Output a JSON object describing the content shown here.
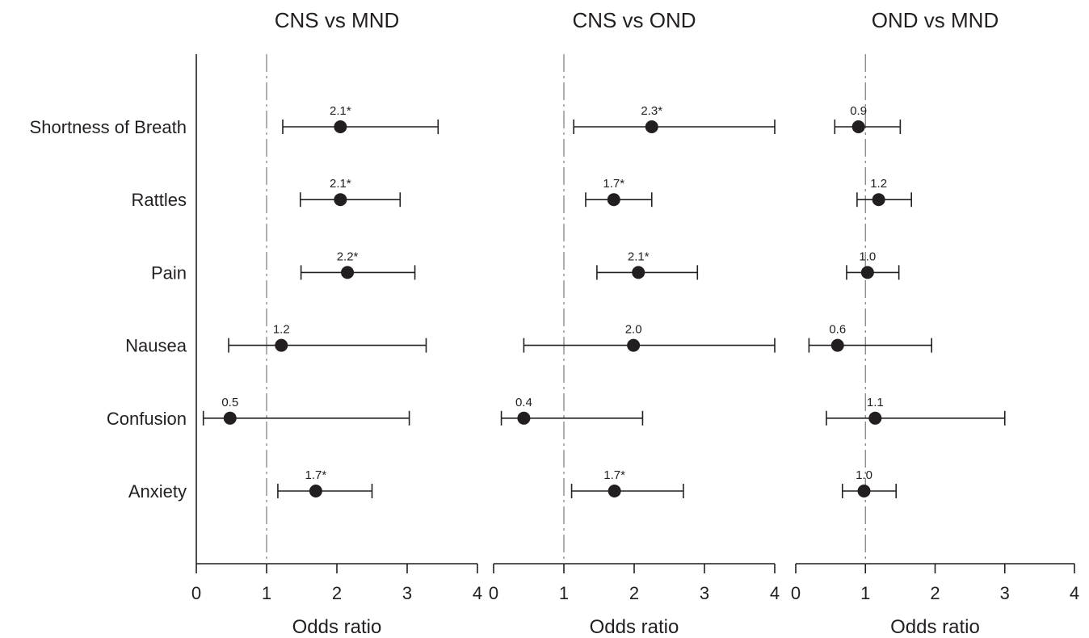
{
  "chart_data": {
    "type": "forest",
    "categories": [
      "Shortness of Breath",
      "Rattles",
      "Pain",
      "Nausea",
      "Confusion",
      "Anxiety"
    ],
    "reference_line": 1,
    "xlabel": "Odds ratio",
    "xlim": [
      0,
      4
    ],
    "xticks": [
      "0",
      "1",
      "2",
      "3",
      "4"
    ],
    "marker_color": "#231f20",
    "panels": [
      {
        "title": "CNS vs MND",
        "xlim": [
          0,
          4
        ],
        "xticks": [
          "0",
          "1",
          "2",
          "3",
          "4"
        ],
        "rows": [
          {
            "or": 2.05,
            "lo": 1.23,
            "hi": 3.44,
            "label": "2.1*"
          },
          {
            "or": 2.05,
            "lo": 1.48,
            "hi": 2.9,
            "label": "2.1*"
          },
          {
            "or": 2.15,
            "lo": 1.49,
            "hi": 3.11,
            "label": "2.2*"
          },
          {
            "or": 1.21,
            "lo": 0.46,
            "hi": 3.27,
            "label": "1.2"
          },
          {
            "or": 0.48,
            "lo": 0.1,
            "hi": 3.03,
            "label": "0.5"
          },
          {
            "or": 1.7,
            "lo": 1.16,
            "hi": 2.5,
            "label": "1.7*"
          }
        ]
      },
      {
        "title": "CNS vs OND",
        "xlim": [
          0,
          4
        ],
        "xticks": [
          "0",
          "1",
          "2",
          "3",
          "4"
        ],
        "rows": [
          {
            "or": 2.25,
            "lo": 1.14,
            "hi": 4.0,
            "label": "2.3*"
          },
          {
            "or": 1.71,
            "lo": 1.31,
            "hi": 2.25,
            "label": "1.7*"
          },
          {
            "or": 2.06,
            "lo": 1.47,
            "hi": 2.9,
            "label": "2.1*"
          },
          {
            "or": 1.99,
            "lo": 0.43,
            "hi": 4.0,
            "label": "2.0"
          },
          {
            "or": 0.43,
            "lo": 0.11,
            "hi": 2.12,
            "label": "0.4"
          },
          {
            "or": 1.72,
            "lo": 1.11,
            "hi": 2.7,
            "label": "1.7*"
          }
        ]
      },
      {
        "title": "OND vs MND",
        "xlim": [
          0,
          4
        ],
        "xticks": [
          "0",
          "1",
          "2",
          "3",
          "4"
        ],
        "rows": [
          {
            "or": 0.9,
            "lo": 0.56,
            "hi": 1.5,
            "label": "0.9"
          },
          {
            "or": 1.19,
            "lo": 0.88,
            "hi": 1.66,
            "label": "1.2"
          },
          {
            "or": 1.03,
            "lo": 0.73,
            "hi": 1.48,
            "label": "1.0"
          },
          {
            "or": 0.6,
            "lo": 0.19,
            "hi": 1.95,
            "label": "0.6"
          },
          {
            "or": 1.14,
            "lo": 0.44,
            "hi": 3.0,
            "label": "1.1"
          },
          {
            "or": 0.98,
            "lo": 0.67,
            "hi": 1.44,
            "label": "1.0"
          }
        ]
      }
    ]
  }
}
